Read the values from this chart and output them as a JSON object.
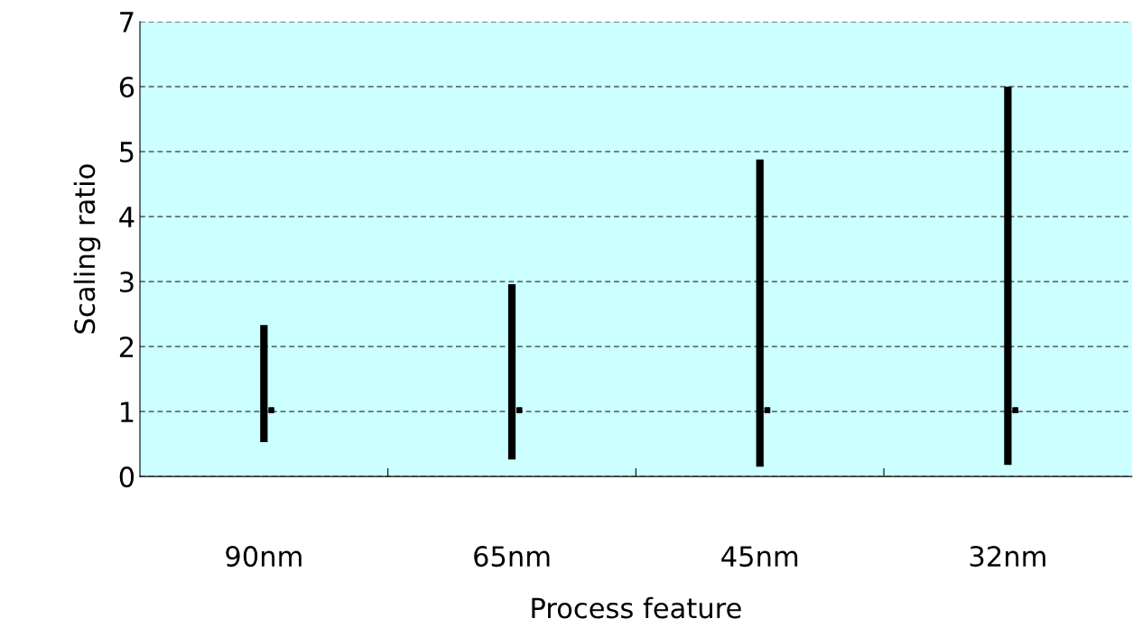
{
  "chart_data": {
    "type": "bar",
    "xlabel": "Process feature",
    "ylabel": "Scaling ratio",
    "categories": [
      "90nm",
      "65nm",
      "45nm",
      "32nm"
    ],
    "series": [
      {
        "color": "#000000",
        "base": [
          0.53,
          0.26,
          0.15,
          0.18
        ],
        "values": [
          1.8,
          2.7,
          4.73,
          5.82
        ]
      },
      {
        "type": "scatter",
        "color": "#000000",
        "marker": "square",
        "values": [
          1.02,
          1.02,
          1.02,
          1.02
        ]
      }
    ],
    "ylim": [
      0,
      7
    ],
    "yticks": [
      0,
      1,
      2,
      3,
      4,
      5,
      6,
      7
    ],
    "grid": "y",
    "line_style": "dashed",
    "legend": false
  }
}
